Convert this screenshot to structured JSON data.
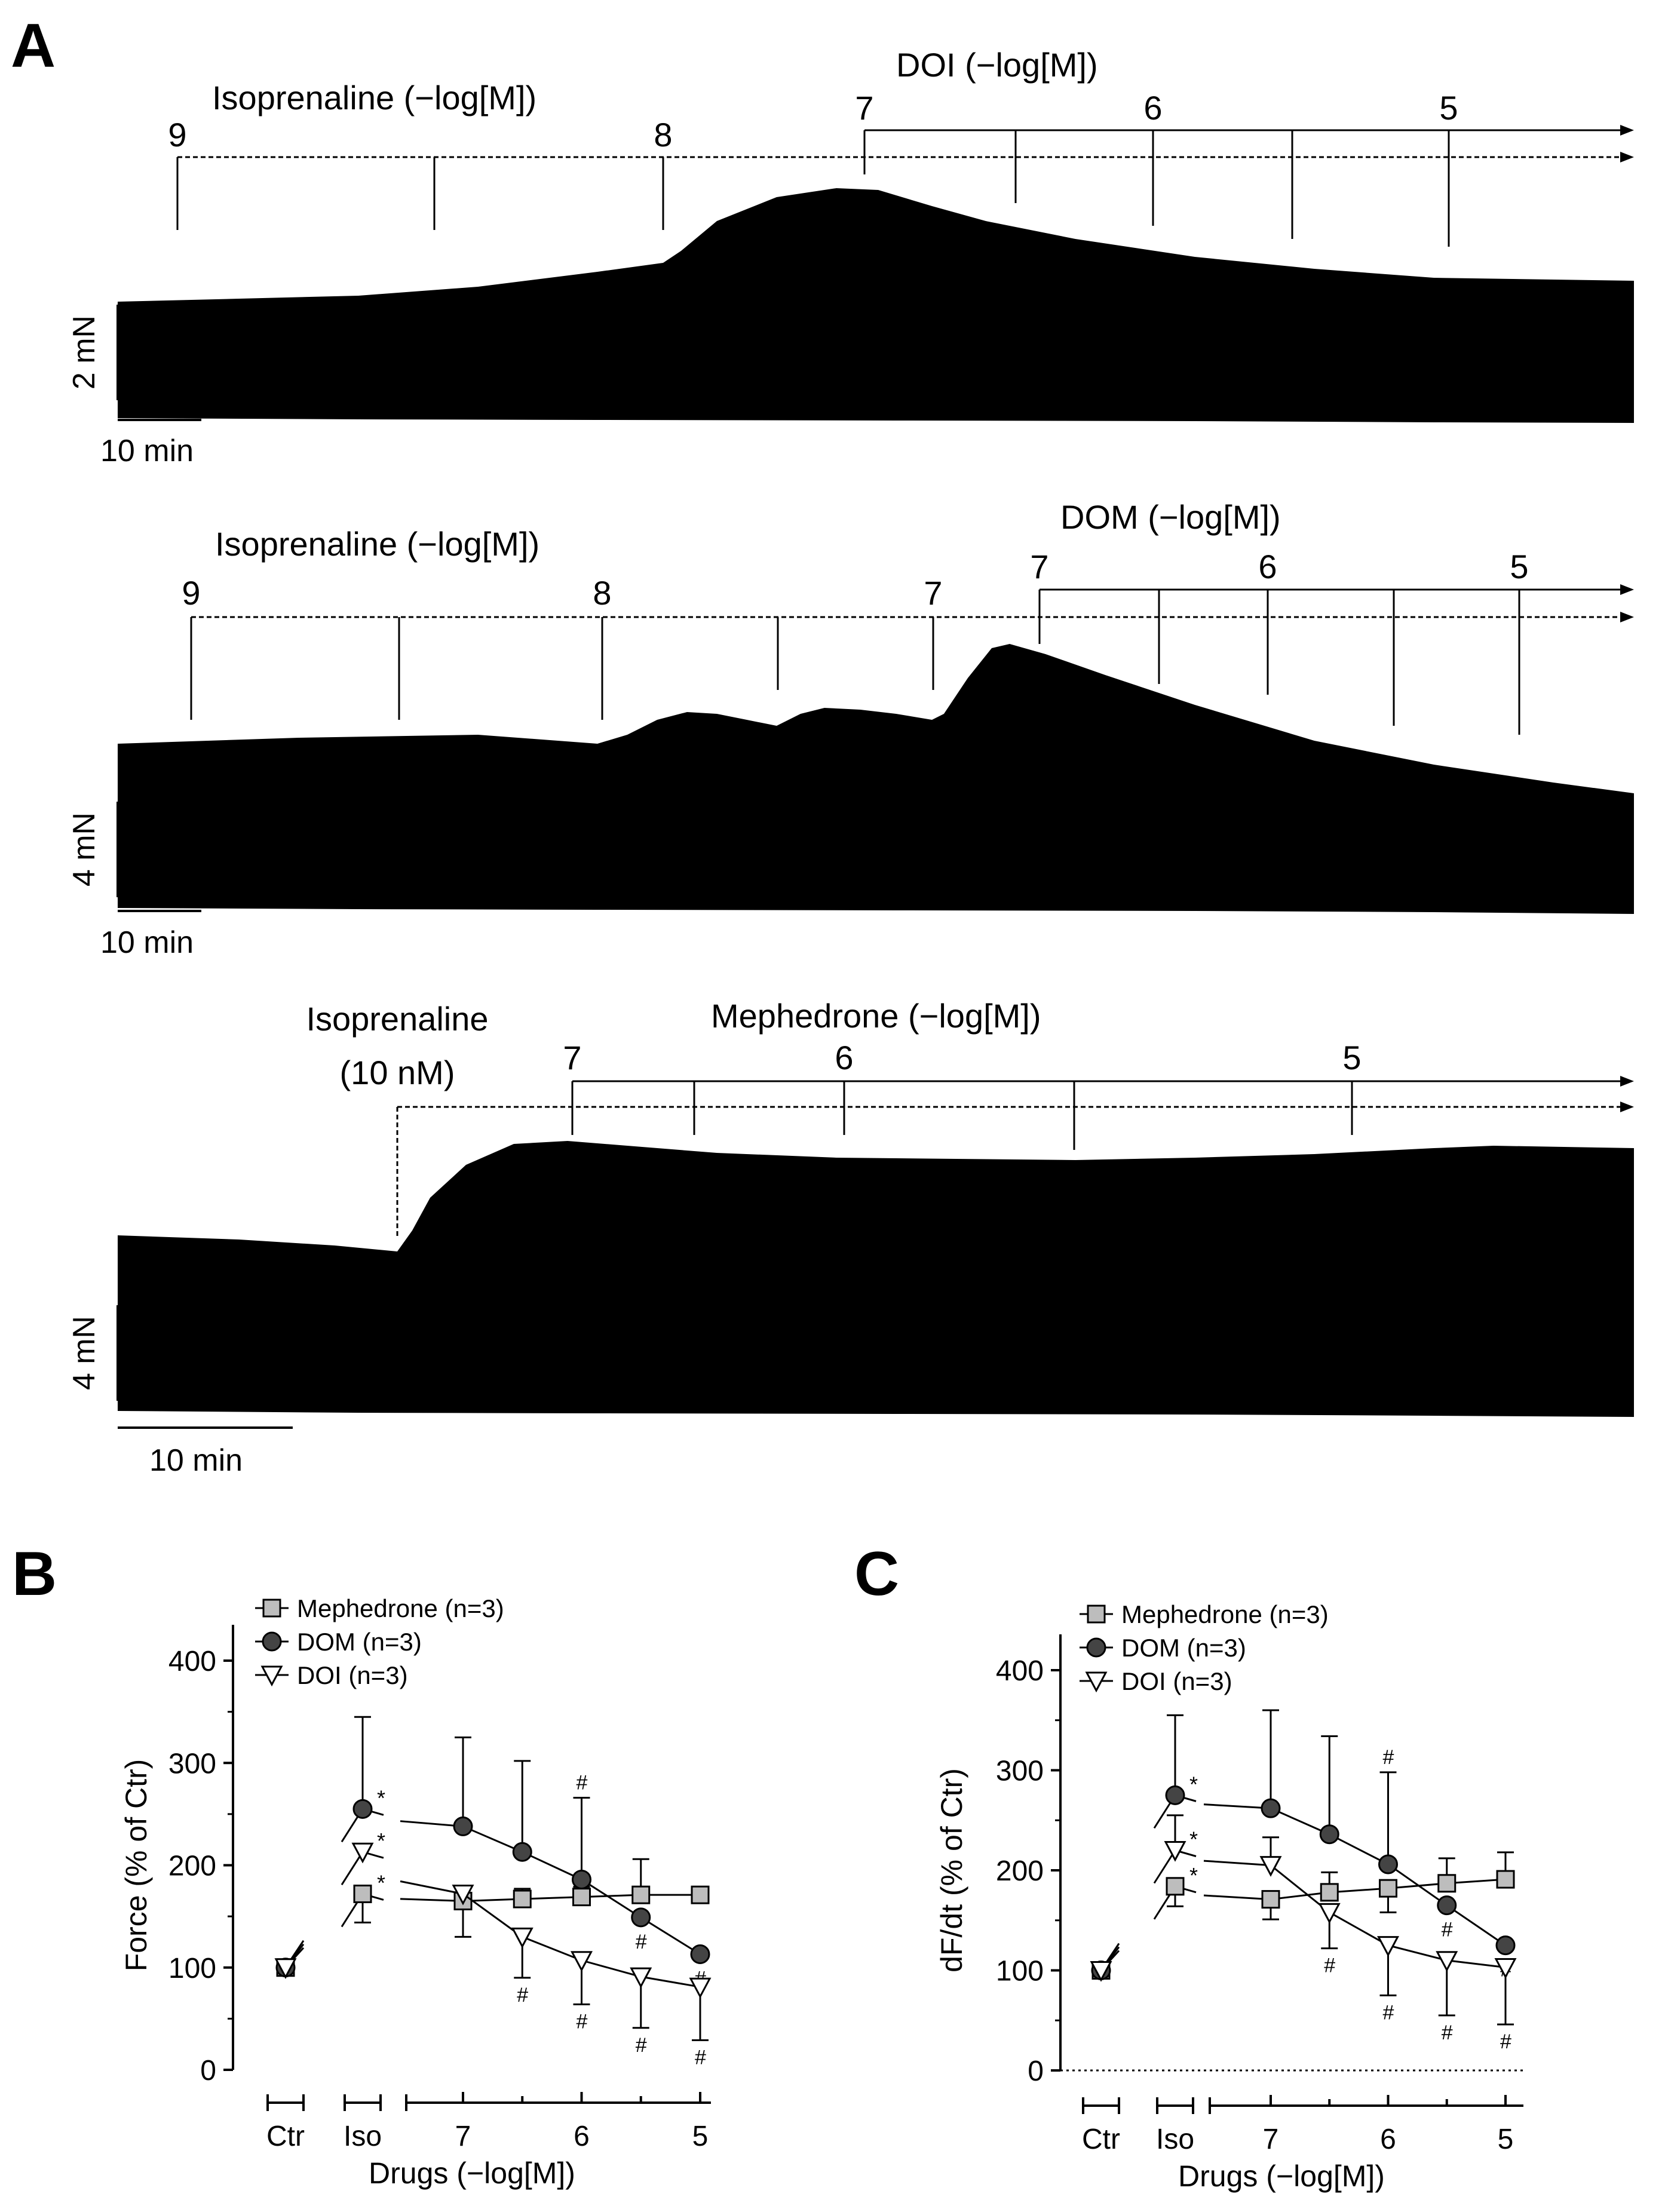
{
  "panel_letters": {
    "a": "A",
    "b": "B",
    "c": "C"
  },
  "traces": [
    {
      "drug1_label": "Isoprenaline (−log[M])",
      "drug1_ticks": [
        "9",
        "8"
      ],
      "drug2_label": "DOI (−log[M])",
      "drug2_ticks": [
        "7",
        "6",
        "5"
      ],
      "force_scale": "2 mN",
      "time_scale": "10 min"
    },
    {
      "drug1_label": "Isoprenaline (−log[M])",
      "drug1_ticks": [
        "9",
        "8",
        "7"
      ],
      "drug2_label": "DOM (−log[M])",
      "drug2_ticks": [
        "7",
        "6",
        "5"
      ],
      "force_scale": "4 mN",
      "time_scale": "10 min"
    },
    {
      "drug1_label_line1": "Isoprenaline",
      "drug1_label_line2": "(10 nM)",
      "drug2_label": "Mephedrone (−log[M])",
      "drug2_ticks": [
        "7",
        "6",
        "5"
      ],
      "force_scale": "4 mN",
      "time_scale": "10 min"
    }
  ],
  "chart_data": [
    {
      "panel": "B",
      "type": "line",
      "ylabel": "Force (% of Ctr)",
      "xlabel": "Drugs (−log[M])",
      "ylim": [
        0,
        400
      ],
      "yticks": [
        "0",
        "100",
        "200",
        "300",
        "400"
      ],
      "group_labels": [
        "Ctr",
        "Iso"
      ],
      "conc_tick_labels": [
        "7",
        "6",
        "5"
      ],
      "significance": {
        "iso": "*",
        "drug": "#"
      },
      "series": [
        {
          "name": "Mephedrone (n=3)",
          "marker": "square",
          "fill": "#bdbdbd",
          "ctr": 100,
          "iso": {
            "value": 172,
            "err_up": 0,
            "err_down": 28
          },
          "drug_x": [
            7,
            6.5,
            6,
            5.5,
            5
          ],
          "drug_values": [
            165,
            167,
            169,
            171,
            171
          ],
          "drug_err_up": [
            0,
            10,
            10,
            35,
            0
          ],
          "drug_err_down": [
            35,
            0,
            0,
            0,
            0
          ],
          "drug_sig": [
            false,
            false,
            false,
            false,
            false
          ]
        },
        {
          "name": "DOM (n=3)",
          "marker": "circle",
          "fill": "#444444",
          "ctr": 100,
          "iso": {
            "value": 255,
            "err_up": 90,
            "err_down": 0
          },
          "drug_x": [
            7,
            6.5,
            6,
            5.5,
            5
          ],
          "drug_values": [
            238,
            213,
            186,
            149,
            113
          ],
          "drug_err_up": [
            87,
            89,
            80,
            0,
            0
          ],
          "drug_err_down": [
            0,
            0,
            0,
            0,
            0
          ],
          "drug_sig": [
            false,
            false,
            true,
            true,
            true
          ]
        },
        {
          "name": "DOI (n=3)",
          "marker": "triangle-down",
          "fill": "#ffffff",
          "ctr": 100,
          "iso": {
            "value": 213,
            "err_up": 0,
            "err_down": 0
          },
          "drug_x": [
            7,
            6.5,
            6,
            5.5,
            5
          ],
          "drug_values": [
            172,
            130,
            107,
            91,
            81
          ],
          "drug_err_up": [
            0,
            0,
            0,
            0,
            0
          ],
          "drug_err_down": [
            0,
            40,
            43,
            50,
            52
          ],
          "drug_sig": [
            false,
            true,
            true,
            true,
            true
          ]
        }
      ]
    },
    {
      "panel": "C",
      "type": "line",
      "ylabel": "dF/dt (% of Ctr)",
      "xlabel": "Drugs (−log[M])",
      "ylim": [
        0,
        400
      ],
      "yticks": [
        "0",
        "100",
        "200",
        "300",
        "400"
      ],
      "group_labels": [
        "Ctr",
        "Iso"
      ],
      "conc_tick_labels": [
        "7",
        "6",
        "5"
      ],
      "significance": {
        "iso": "*",
        "drug": "#"
      },
      "series": [
        {
          "name": "Mephedrone (n=3)",
          "marker": "square",
          "fill": "#bdbdbd",
          "ctr": 100,
          "iso": {
            "value": 184,
            "err_up": 0,
            "err_down": 20
          },
          "drug_x": [
            7,
            6.5,
            6,
            5.5,
            5
          ],
          "drug_values": [
            171,
            178,
            182,
            187,
            191
          ],
          "drug_err_up": [
            0,
            20,
            0,
            25,
            27
          ],
          "drug_err_down": [
            20,
            0,
            24,
            0,
            0
          ],
          "drug_sig": [
            false,
            false,
            false,
            false,
            false
          ]
        },
        {
          "name": "DOM (n=3)",
          "marker": "circle",
          "fill": "#444444",
          "ctr": 100,
          "iso": {
            "value": 275,
            "err_up": 80,
            "err_down": 0
          },
          "drug_x": [
            7,
            6.5,
            6,
            5.5,
            5
          ],
          "drug_values": [
            262,
            236,
            206,
            165,
            125
          ],
          "drug_err_up": [
            98,
            98,
            92,
            0,
            0
          ],
          "drug_err_down": [
            0,
            0,
            0,
            0,
            0
          ],
          "drug_sig": [
            false,
            false,
            true,
            true,
            true
          ]
        },
        {
          "name": "DOI (n=3)",
          "marker": "triangle-down",
          "fill": "#ffffff",
          "ctr": 100,
          "iso": {
            "value": 220,
            "err_up": 35,
            "err_down": 0
          },
          "drug_x": [
            7,
            6.5,
            6,
            5.5,
            5
          ],
          "drug_values": [
            205,
            158,
            125,
            110,
            103
          ],
          "drug_err_up": [
            28,
            0,
            0,
            0,
            0
          ],
          "drug_err_down": [
            0,
            36,
            50,
            55,
            57
          ],
          "drug_sig": [
            false,
            true,
            true,
            true,
            true
          ]
        }
      ]
    }
  ]
}
